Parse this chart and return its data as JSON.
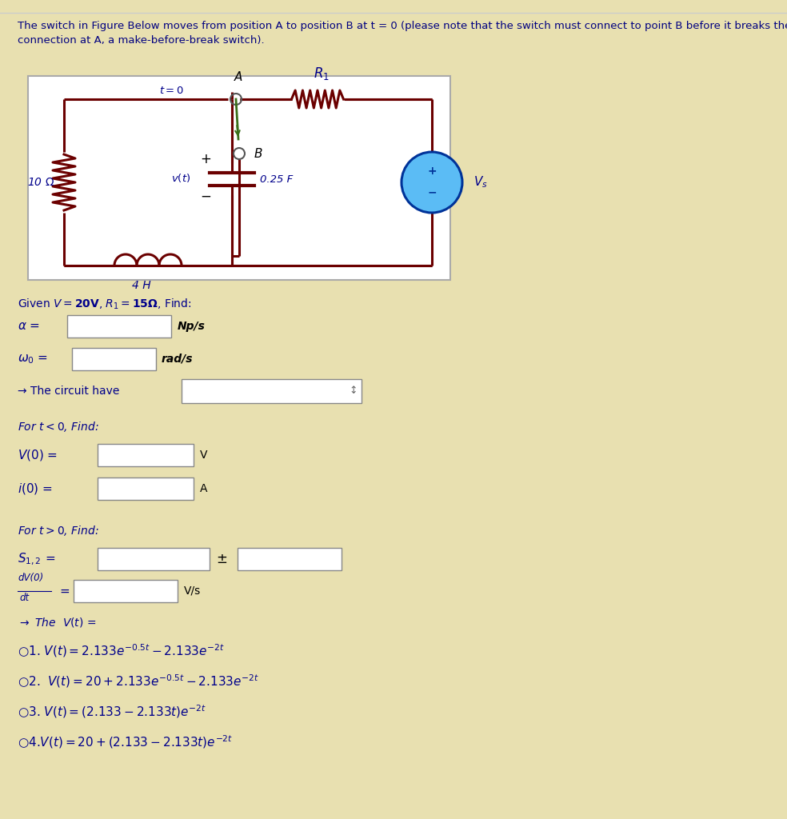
{
  "page_bg": "#e8e0b0",
  "circuit_bg": "#ffffff",
  "wire_color": "#6B0000",
  "text_color": "#00008B",
  "form_color": "#00008B",
  "title_line1": "The switch in Figure Below moves from position A to position B at t = 0 (please note that the switch must connect to point B before it breaks the",
  "title_line2": "connection at A, a make-before-break switch).",
  "given_text": "Given $V = \\mathbf{20V}$, $R_1 = \\mathbf{15\\Omega}$, Find:",
  "resistor_10": "10 $\\Omega$",
  "inductor_4H": "4 H",
  "capacitor_025": "0.25 F",
  "R1_label": "$R_1$",
  "Vs_label": "$V_s$",
  "vt_circuit": "$v(t)$",
  "t0_label": "$t=0$",
  "A_label": "$A$",
  "B_label": "$B$",
  "alpha_label": "$\\alpha$ =",
  "alpha_unit": "Np/s",
  "omega_label": "$\\omega_0$ =",
  "omega_unit": "rad/s",
  "circuit_type": "\\u2192 The circuit have",
  "t_less": "For $t < 0$, Find:",
  "V0_label": "$V(0)$ =",
  "V0_unit": "V",
  "i0_label": "$i(0)$ =",
  "i0_unit": "A",
  "t_great": "For $t > 0$, Find:",
  "S12_label": "$S_{1,2}$ =",
  "S12_pm": "$\\pm$",
  "dvdt_label": "dV(0)",
  "dvdt_sub": "dt",
  "dvdt_unit": "V/s",
  "vt_arrow": "\\u2192 The  $V(t)$ ="
}
